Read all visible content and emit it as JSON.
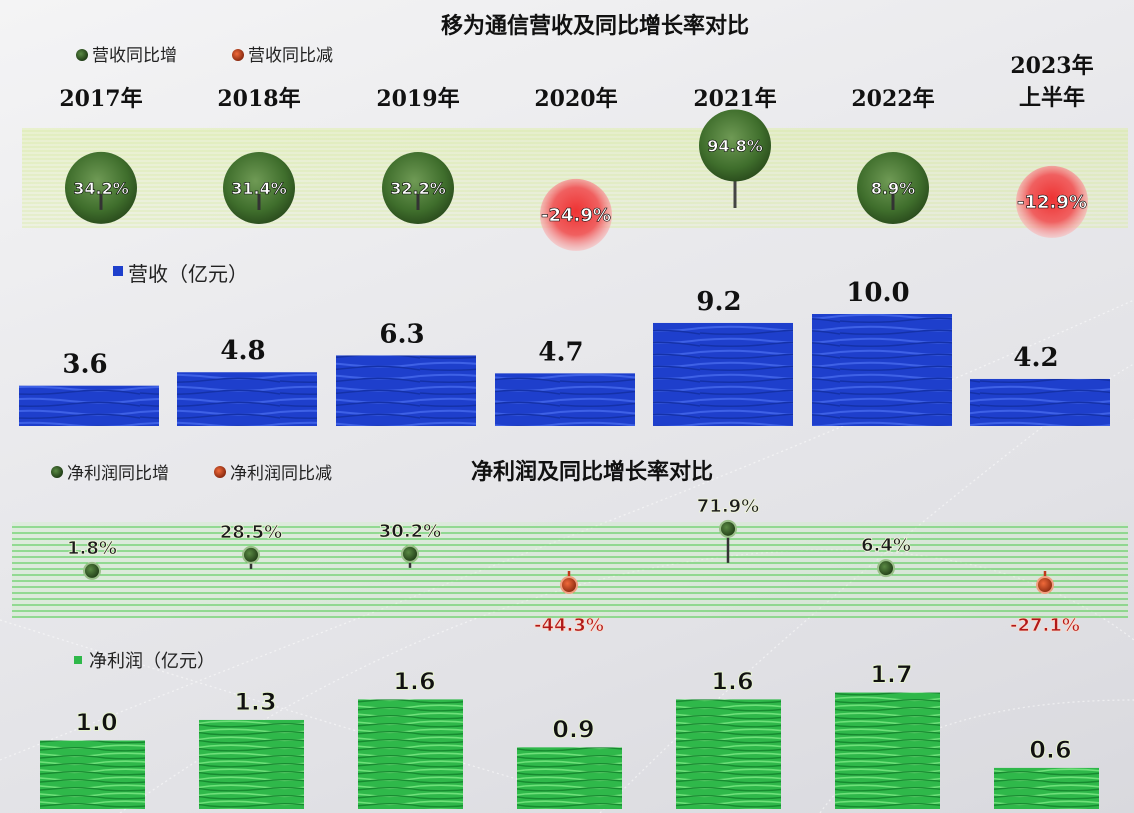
{
  "chart_data": [
    {
      "type": "bar",
      "title": "移为通信营收及同比增长率对比",
      "categories": [
        "2017年",
        "2018年",
        "2019年",
        "2020年",
        "2021年",
        "2022年",
        "2023年上半年"
      ],
      "category_lines": [
        [
          "2017年"
        ],
        [
          "2018年"
        ],
        [
          "2019年"
        ],
        [
          "2020年"
        ],
        [
          "2021年"
        ],
        [
          "2022年"
        ],
        [
          "2023年",
          "上半年"
        ]
      ],
      "legend": {
        "increase": "营收同比增",
        "decrease": "营收同比减"
      },
      "growth": {
        "values": [
          34.2,
          31.4,
          32.2,
          -24.9,
          94.8,
          8.9,
          -12.9
        ],
        "labels": [
          "34.2%",
          "31.4%",
          "32.2%",
          "-24.9%",
          "94.8%",
          "8.9%",
          "-12.9%"
        ]
      },
      "series": [
        {
          "name": "营收（亿元）",
          "values": [
            3.6,
            4.8,
            6.3,
            4.7,
            9.2,
            10.0,
            4.2
          ],
          "labels": [
            "3.6",
            "4.8",
            "6.3",
            "4.7",
            "9.2",
            "10.0",
            "4.2"
          ]
        }
      ]
    },
    {
      "type": "bar",
      "title": "净利润及同比增长率对比",
      "categories": [
        "2017年",
        "2018年",
        "2019年",
        "2020年",
        "2021年",
        "2022年",
        "2023年上半年"
      ],
      "legend": {
        "increase": "净利润同比增",
        "decrease": "净利润同比减"
      },
      "growth": {
        "values": [
          1.8,
          28.5,
          30.2,
          -44.3,
          71.9,
          6.4,
          -27.1
        ],
        "labels": [
          "1.8%",
          "28.5%",
          "30.2%",
          "-44.3%",
          "71.9%",
          "6.4%",
          "-27.1%"
        ]
      },
      "series": [
        {
          "name": "净利润（亿元）",
          "values": [
            1.0,
            1.3,
            1.6,
            0.9,
            1.6,
            1.7,
            0.6
          ],
          "labels": [
            "1.0",
            "1.3",
            "1.6",
            "0.9",
            "1.6",
            "1.7",
            "0.6"
          ]
        }
      ]
    }
  ],
  "colors": {
    "increase": "#3f6e2c",
    "decrease": "#d81c1c",
    "revenue_bar": "#1e3fcc",
    "profit_bar": "#2fb84a",
    "band_top": "#d9f08a",
    "band_bottom": "#48d048"
  }
}
